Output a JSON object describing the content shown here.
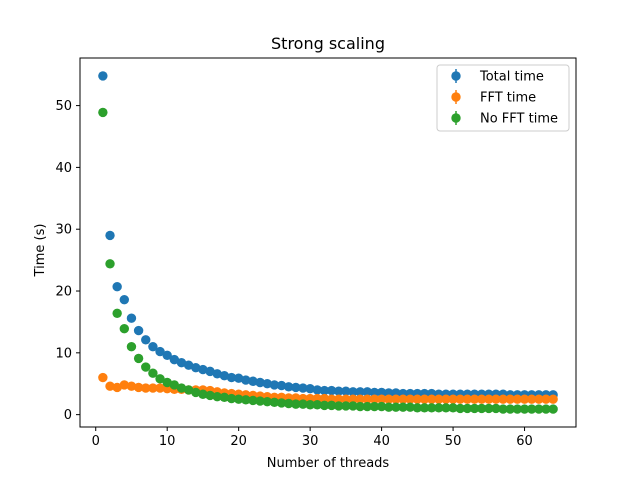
{
  "chart_data": {
    "type": "scatter",
    "title": "Strong scaling",
    "xlabel": "Number of threads",
    "ylabel": "Time (s)",
    "xlim": [
      -2.2,
      67.2
    ],
    "ylim": [
      -2.0,
      57.7
    ],
    "xticks": [
      0,
      10,
      20,
      30,
      40,
      50,
      60
    ],
    "yticks": [
      0,
      10,
      20,
      30,
      40,
      50
    ],
    "legend_position": "upper right",
    "grid": false,
    "series": [
      {
        "name": "Total time",
        "color": "#1f77b4",
        "x": [
          1,
          2,
          3,
          4,
          5,
          6,
          7,
          8,
          9,
          10,
          11,
          12,
          13,
          14,
          15,
          16,
          17,
          18,
          19,
          20,
          21,
          22,
          23,
          24,
          25,
          26,
          27,
          28,
          29,
          30,
          31,
          32,
          33,
          34,
          35,
          36,
          37,
          38,
          39,
          40,
          41,
          42,
          43,
          44,
          45,
          46,
          47,
          48,
          49,
          50,
          51,
          52,
          53,
          54,
          55,
          56,
          57,
          58,
          59,
          60,
          61,
          62,
          63,
          64
        ],
        "y": [
          54.8,
          29.0,
          20.7,
          18.6,
          15.6,
          13.6,
          12.1,
          11.0,
          10.2,
          9.6,
          8.9,
          8.4,
          8.0,
          7.6,
          7.3,
          7.0,
          6.6,
          6.3,
          6.0,
          5.9,
          5.6,
          5.4,
          5.2,
          5.0,
          4.8,
          4.7,
          4.5,
          4.4,
          4.3,
          4.2,
          4.0,
          3.9,
          3.9,
          3.8,
          3.8,
          3.7,
          3.7,
          3.7,
          3.6,
          3.6,
          3.5,
          3.5,
          3.4,
          3.4,
          3.4,
          3.4,
          3.4,
          3.3,
          3.3,
          3.3,
          3.3,
          3.3,
          3.3,
          3.3,
          3.3,
          3.3,
          3.3,
          3.2,
          3.2,
          3.2,
          3.2,
          3.2,
          3.2,
          3.2
        ]
      },
      {
        "name": "FFT time",
        "color": "#ff7f0e",
        "x": [
          1,
          2,
          3,
          4,
          5,
          6,
          7,
          8,
          9,
          10,
          11,
          12,
          13,
          14,
          15,
          16,
          17,
          18,
          19,
          20,
          21,
          22,
          23,
          24,
          25,
          26,
          27,
          28,
          29,
          30,
          31,
          32,
          33,
          34,
          35,
          36,
          37,
          38,
          39,
          40,
          41,
          42,
          43,
          44,
          45,
          46,
          47,
          48,
          49,
          50,
          51,
          52,
          53,
          54,
          55,
          56,
          57,
          58,
          59,
          60,
          61,
          62,
          63,
          64
        ],
        "y": [
          6.0,
          4.6,
          4.4,
          4.8,
          4.6,
          4.4,
          4.3,
          4.3,
          4.3,
          4.2,
          4.1,
          4.1,
          4.0,
          4.0,
          4.0,
          3.9,
          3.7,
          3.5,
          3.4,
          3.3,
          3.2,
          3.1,
          3.0,
          2.9,
          2.8,
          2.8,
          2.7,
          2.7,
          2.6,
          2.6,
          2.6,
          2.6,
          2.5,
          2.5,
          2.5,
          2.5,
          2.5,
          2.5,
          2.5,
          2.5,
          2.5,
          2.5,
          2.5,
          2.5,
          2.5,
          2.5,
          2.5,
          2.5,
          2.5,
          2.5,
          2.5,
          2.5,
          2.5,
          2.5,
          2.5,
          2.5,
          2.5,
          2.5,
          2.5,
          2.5,
          2.5,
          2.5,
          2.5,
          2.5
        ]
      },
      {
        "name": "No FFT time",
        "color": "#2ca02c",
        "x": [
          1,
          2,
          3,
          4,
          5,
          6,
          7,
          8,
          9,
          10,
          11,
          12,
          13,
          14,
          15,
          16,
          17,
          18,
          19,
          20,
          21,
          22,
          23,
          24,
          25,
          26,
          27,
          28,
          29,
          30,
          31,
          32,
          33,
          34,
          35,
          36,
          37,
          38,
          39,
          40,
          41,
          42,
          43,
          44,
          45,
          46,
          47,
          48,
          49,
          50,
          51,
          52,
          53,
          54,
          55,
          56,
          57,
          58,
          59,
          60,
          61,
          62,
          63,
          64
        ],
        "y": [
          48.9,
          24.4,
          16.4,
          13.9,
          11.0,
          9.1,
          7.7,
          6.7,
          5.8,
          5.2,
          4.8,
          4.3,
          4.0,
          3.6,
          3.3,
          3.1,
          2.9,
          2.8,
          2.6,
          2.5,
          2.4,
          2.3,
          2.2,
          2.1,
          2.0,
          1.9,
          1.8,
          1.7,
          1.7,
          1.6,
          1.6,
          1.5,
          1.5,
          1.4,
          1.4,
          1.4,
          1.3,
          1.3,
          1.3,
          1.3,
          1.2,
          1.2,
          1.2,
          1.2,
          1.1,
          1.1,
          1.1,
          1.1,
          1.1,
          1.1,
          1.0,
          1.0,
          1.0,
          1.0,
          1.0,
          1.0,
          0.9,
          0.9,
          0.9,
          0.9,
          0.9,
          0.9,
          0.9,
          0.9
        ]
      }
    ]
  }
}
